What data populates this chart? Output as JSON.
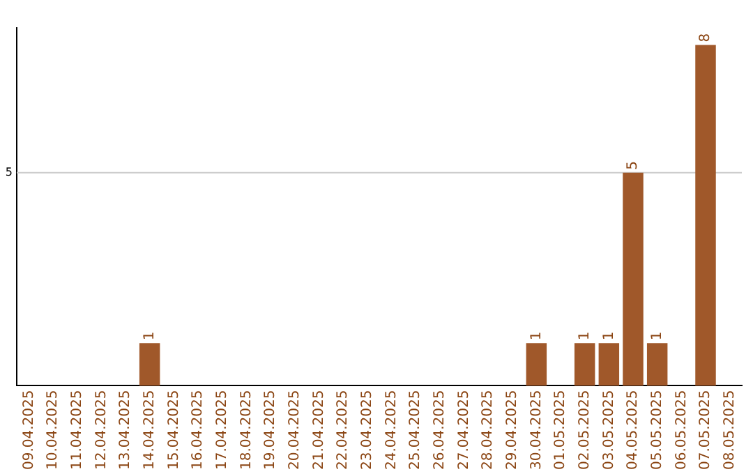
{
  "chart_data": {
    "type": "bar",
    "categories": [
      "09.04.2025",
      "10.04.2025",
      "11.04.2025",
      "12.04.2025",
      "13.04.2025",
      "14.04.2025",
      "15.04.2025",
      "16.04.2025",
      "17.04.2025",
      "18.04.2025",
      "19.04.2025",
      "20.04.2025",
      "21.04.2025",
      "22.04.2025",
      "23.04.2025",
      "24.04.2025",
      "25.04.2025",
      "26.04.2025",
      "27.04.2025",
      "28.04.2025",
      "29.04.2025",
      "30.04.2025",
      "01.05.2025",
      "02.05.2025",
      "03.05.2025",
      "04.05.2025",
      "05.05.2025",
      "06.05.2025",
      "07.05.2025",
      "08.05.2025"
    ],
    "values": [
      0,
      0,
      0,
      0,
      0,
      1,
      0,
      0,
      0,
      0,
      0,
      0,
      0,
      0,
      0,
      0,
      0,
      0,
      0,
      0,
      0,
      1,
      0,
      1,
      1,
      5,
      1,
      0,
      8,
      0
    ],
    "value_labels": [
      null,
      null,
      null,
      null,
      null,
      "1",
      null,
      null,
      null,
      null,
      null,
      null,
      null,
      null,
      null,
      null,
      null,
      null,
      null,
      null,
      null,
      "1",
      null,
      "1",
      "1",
      "5",
      "1",
      null,
      "8",
      null
    ],
    "ylim": [
      0,
      8.4
    ],
    "color": "#a0582a",
    "ref_lines": [
      {
        "axis": "y",
        "value": 5,
        "label": "5",
        "color": "#cccccc"
      }
    ],
    "legend": false
  }
}
